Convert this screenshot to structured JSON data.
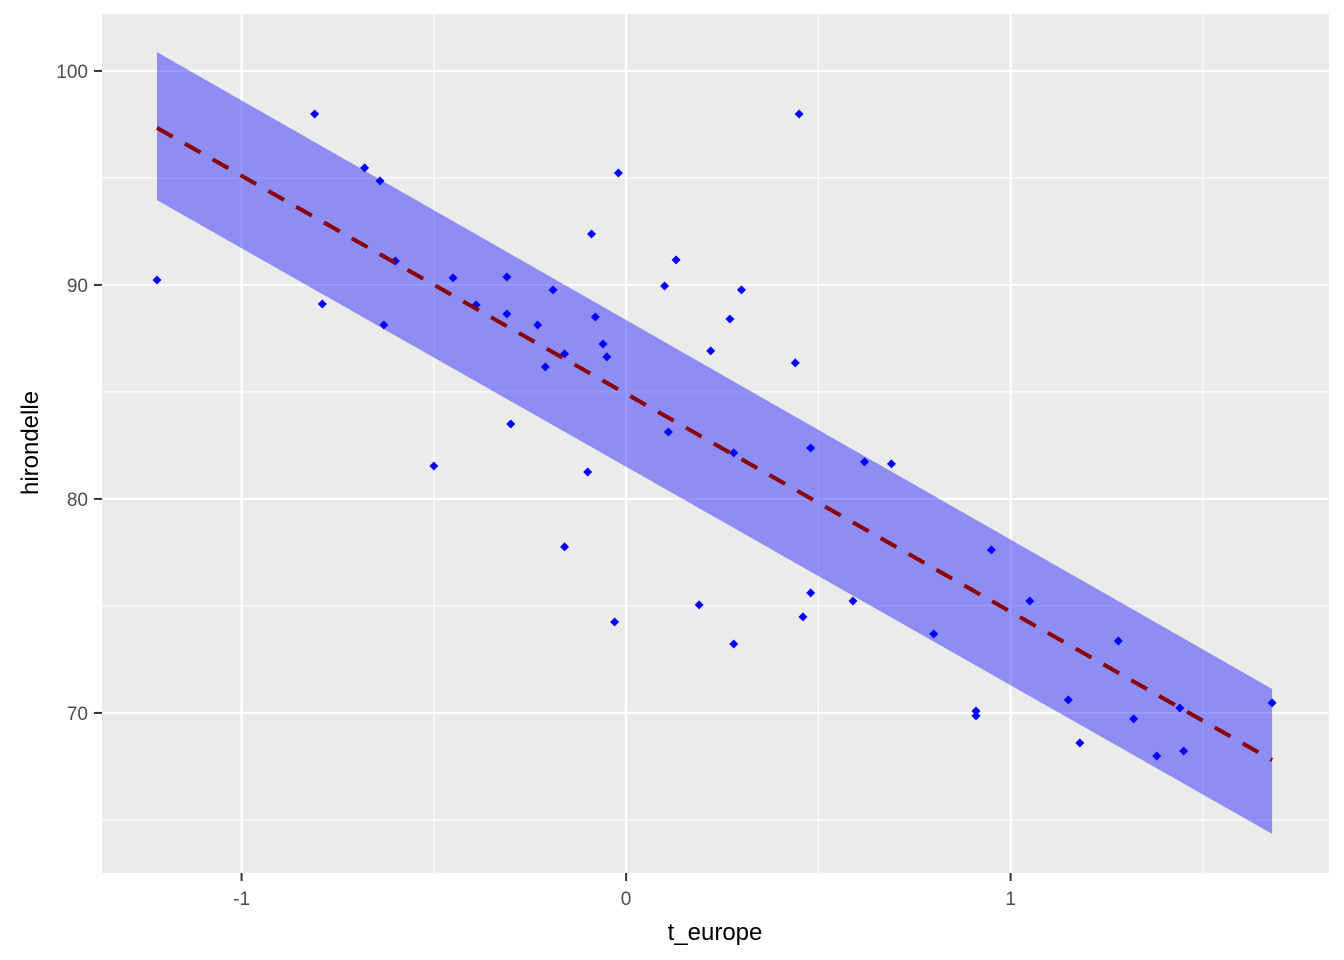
{
  "chart_data": {
    "type": "scatter",
    "title": "",
    "xlabel": "t_europe",
    "ylabel": "hirondelle",
    "xlim": [
      -1.363,
      1.828
    ],
    "ylim": [
      62.52,
      102.66
    ],
    "x_ticks": [
      -1,
      0,
      1
    ],
    "x_tick_labels": [
      "-1",
      "0",
      "1"
    ],
    "x_minor_ticks": [
      -0.5,
      0.5,
      1.5
    ],
    "y_ticks": [
      70,
      80,
      90,
      100
    ],
    "y_tick_labels": [
      "70",
      "80",
      "90",
      "100"
    ],
    "y_minor_ticks": [
      65,
      75,
      85,
      95
    ],
    "grid": true,
    "legend": null,
    "points": {
      "color": "#0000ff",
      "shape": "diamond",
      "x": [
        -1.22,
        -0.81,
        -0.68,
        -0.64,
        -0.6,
        -0.79,
        -0.63,
        -0.5,
        -0.45,
        -0.39,
        -0.31,
        -0.31,
        -0.3,
        -0.23,
        -0.21,
        -0.19,
        -0.16,
        -0.1,
        -0.16,
        -0.03,
        -0.02,
        -0.09,
        -0.08,
        -0.06,
        -0.05,
        0.1,
        0.13,
        0.11,
        0.19,
        0.22,
        0.27,
        0.28,
        0.28,
        0.3,
        0.44,
        0.45,
        0.48,
        0.46,
        0.48,
        0.59,
        0.62,
        0.69,
        0.8,
        0.91,
        0.91,
        0.95,
        1.05,
        1.15,
        1.18,
        1.28,
        1.32,
        1.38,
        1.44,
        1.45,
        1.68
      ],
      "y": [
        90.23,
        97.99,
        95.47,
        94.86,
        91.12,
        89.11,
        88.13,
        81.54,
        90.33,
        89.07,
        90.37,
        88.64,
        83.5,
        88.13,
        86.17,
        89.77,
        86.78,
        81.26,
        77.76,
        74.25,
        95.23,
        92.38,
        88.5,
        87.24,
        86.64,
        89.95,
        91.17,
        83.13,
        75.05,
        86.92,
        88.41,
        73.22,
        82.15,
        89.77,
        86.36,
        97.99,
        82.38,
        74.49,
        75.61,
        75.23,
        81.73,
        81.64,
        73.69,
        70.09,
        69.86,
        77.62,
        75.23,
        70.61,
        68.6,
        73.36,
        69.72,
        67.99,
        70.23,
        68.22,
        70.47
      ]
    },
    "fit_line": {
      "type": "linear",
      "style": "dashed",
      "color": "#8b0000",
      "x": [
        -1.22,
        1.68
      ],
      "y": [
        97.34,
        67.8
      ]
    },
    "confidence_band": {
      "color": "#0000ff",
      "opacity": 0.4,
      "x": [
        -1.22,
        1.68
      ],
      "upper": [
        100.88,
        71.12
      ],
      "lower": [
        93.96,
        64.35
      ]
    },
    "colors": {
      "panel_background": "#ebebeb",
      "grid": "#ffffff",
      "point": "#0000ff",
      "line": "#8b0000",
      "band": "#8f8ff5"
    }
  }
}
